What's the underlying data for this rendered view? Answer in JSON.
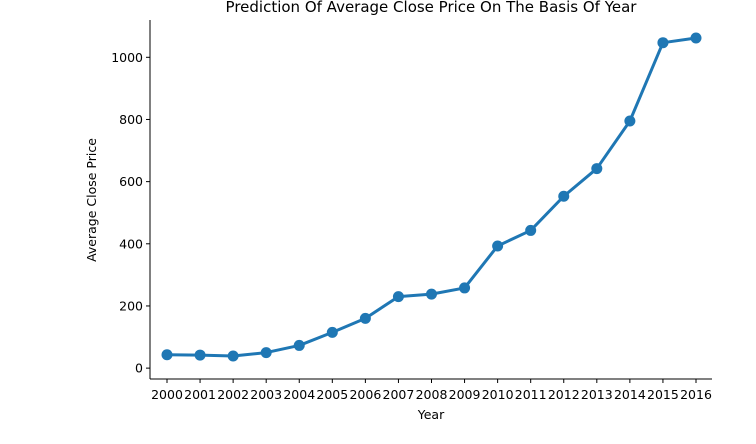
{
  "chart_data": {
    "type": "line",
    "title": "Prediction Of Average Close Price On The Basis Of Year",
    "xlabel": "Year",
    "ylabel": "Average Close Price",
    "categories": [
      "2000",
      "2001",
      "2002",
      "2003",
      "2004",
      "2005",
      "2006",
      "2007",
      "2008",
      "2009",
      "2010",
      "2011",
      "2012",
      "2013",
      "2014",
      "2015",
      "2016"
    ],
    "series": [
      {
        "values": [
          43,
          42,
          39,
          50,
          73,
          115,
          160,
          230,
          238,
          258,
          393,
          443,
          553,
          642,
          795,
          1047,
          1062
        ]
      }
    ],
    "ylim": [
      -35,
      1120
    ],
    "yticks": [
      0,
      200,
      400,
      600,
      800,
      1000
    ],
    "grid": false,
    "legend": "none",
    "line_color": "#1f77b4"
  }
}
